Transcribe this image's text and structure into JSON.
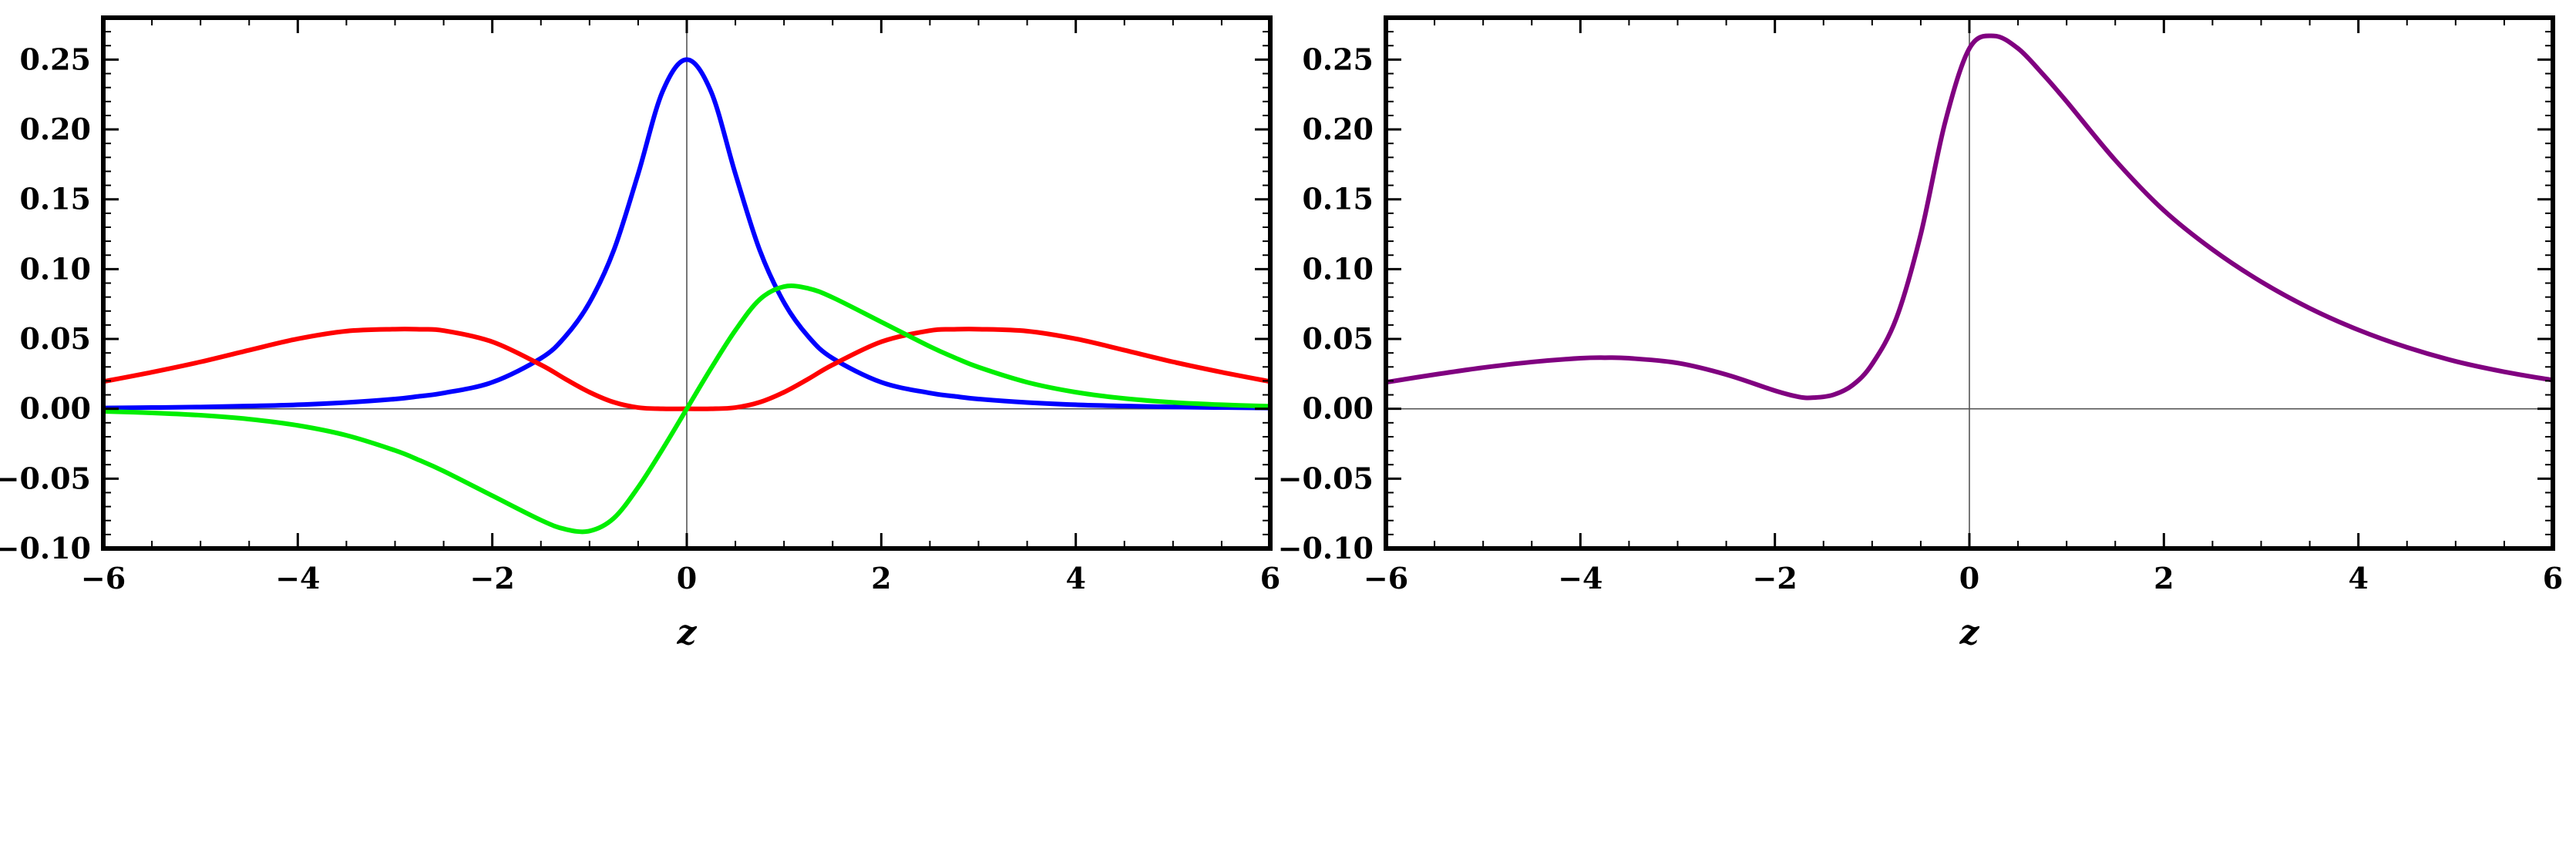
{
  "chart_data": [
    {
      "type": "line",
      "title": "",
      "xlabel": "z",
      "ylabel": "",
      "xlim": [
        -6,
        6
      ],
      "ylim": [
        -0.1,
        0.28
      ],
      "xticks": [
        -6,
        -4,
        -2,
        0,
        2,
        4,
        6
      ],
      "xtick_labels": [
        "−6",
        "−4",
        "−2",
        "0",
        "2",
        "4",
        "6"
      ],
      "yticks": [
        -0.1,
        -0.05,
        0.0,
        0.05,
        0.1,
        0.15,
        0.2,
        0.25
      ],
      "ytick_labels": [
        "−0.10",
        "−0.05",
        "0.00",
        "0.05",
        "0.10",
        "0.15",
        "0.20",
        "0.25"
      ],
      "grid": false,
      "x": [
        -6,
        -5.5,
        -5,
        -4.5,
        -4,
        -3.5,
        -3,
        -2.75,
        -2.5,
        -2,
        -1.5,
        -1.25,
        -1,
        -0.75,
        -0.5,
        -0.25,
        0,
        0.25,
        0.5,
        0.75,
        1,
        1.25,
        1.5,
        2,
        2.5,
        2.75,
        3,
        3.5,
        4,
        4.5,
        5,
        5.5,
        6
      ],
      "series": [
        {
          "name": "",
          "color": "#0000ff",
          "values": [
            0.0006,
            0.0009,
            0.0013,
            0.002,
            0.0029,
            0.0045,
            0.007,
            0.009,
            0.0113,
            0.019,
            0.0362,
            0.0517,
            0.0761,
            0.1136,
            0.1682,
            0.227,
            0.25,
            0.227,
            0.1682,
            0.1136,
            0.0761,
            0.0517,
            0.0362,
            0.019,
            0.0113,
            0.009,
            0.007,
            0.0045,
            0.0029,
            0.002,
            0.0013,
            0.0009,
            0.0006
          ]
        },
        {
          "name": "",
          "color": "#ff0000",
          "values": [
            0.0195,
            0.0262,
            0.0336,
            0.042,
            0.0501,
            0.0556,
            0.057,
            0.0569,
            0.056,
            0.048,
            0.0315,
            0.0214,
            0.0119,
            0.0047,
            0.0009,
            0.0,
            0.0,
            0.0,
            0.0009,
            0.0047,
            0.0119,
            0.0214,
            0.0315,
            0.048,
            0.056,
            0.0569,
            0.057,
            0.0556,
            0.0501,
            0.042,
            0.0336,
            0.0262,
            0.0195
          ]
        },
        {
          "name": "",
          "color": "#00ee00",
          "values": [
            -0.0018,
            -0.0029,
            -0.0046,
            -0.0074,
            -0.0119,
            -0.019,
            -0.0298,
            -0.0368,
            -0.0446,
            -0.0622,
            -0.0797,
            -0.0862,
            -0.0875,
            -0.0783,
            -0.0562,
            -0.029,
            0.0,
            0.029,
            0.0562,
            0.0783,
            0.0875,
            0.0862,
            0.0797,
            0.0622,
            0.0446,
            0.0368,
            0.0298,
            0.019,
            0.0119,
            0.0074,
            0.0046,
            0.0029,
            0.0018
          ]
        }
      ]
    },
    {
      "type": "line",
      "title": "",
      "xlabel": "z",
      "ylabel": "",
      "xlim": [
        -6,
        6
      ],
      "ylim": [
        -0.1,
        0.28
      ],
      "xticks": [
        -6,
        -4,
        -2,
        0,
        2,
        4,
        6
      ],
      "xtick_labels": [
        "−6",
        "−4",
        "−2",
        "0",
        "2",
        "4",
        "6"
      ],
      "yticks": [
        -0.1,
        -0.05,
        0.0,
        0.05,
        0.1,
        0.15,
        0.2,
        0.25
      ],
      "ytick_labels": [
        "−0.10",
        "−0.05",
        "0.00",
        "0.05",
        "0.10",
        "0.15",
        "0.20",
        "0.25"
      ],
      "grid": false,
      "x": [
        -6,
        -5.5,
        -5,
        -4.5,
        -4,
        -3.75,
        -3.5,
        -3,
        -2.5,
        -2,
        -1.75,
        -1.6,
        -1.4,
        -1.2,
        -1,
        -0.75,
        -0.5,
        -0.25,
        0,
        0.25,
        0.5,
        0.75,
        1,
        1.5,
        2,
        2.5,
        3,
        3.5,
        4,
        4.5,
        5,
        5.5,
        6
      ],
      "series": [
        {
          "name": "",
          "color": "#800080",
          "values": [
            0.019,
            0.0245,
            0.0295,
            0.0335,
            0.0362,
            0.0366,
            0.0362,
            0.0328,
            0.0245,
            0.013,
            0.0085,
            0.008,
            0.01,
            0.017,
            0.032,
            0.065,
            0.125,
            0.205,
            0.258,
            0.267,
            0.258,
            0.24,
            0.22,
            0.178,
            0.142,
            0.114,
            0.091,
            0.072,
            0.0565,
            0.044,
            0.034,
            0.0265,
            0.0205
          ]
        }
      ]
    }
  ]
}
